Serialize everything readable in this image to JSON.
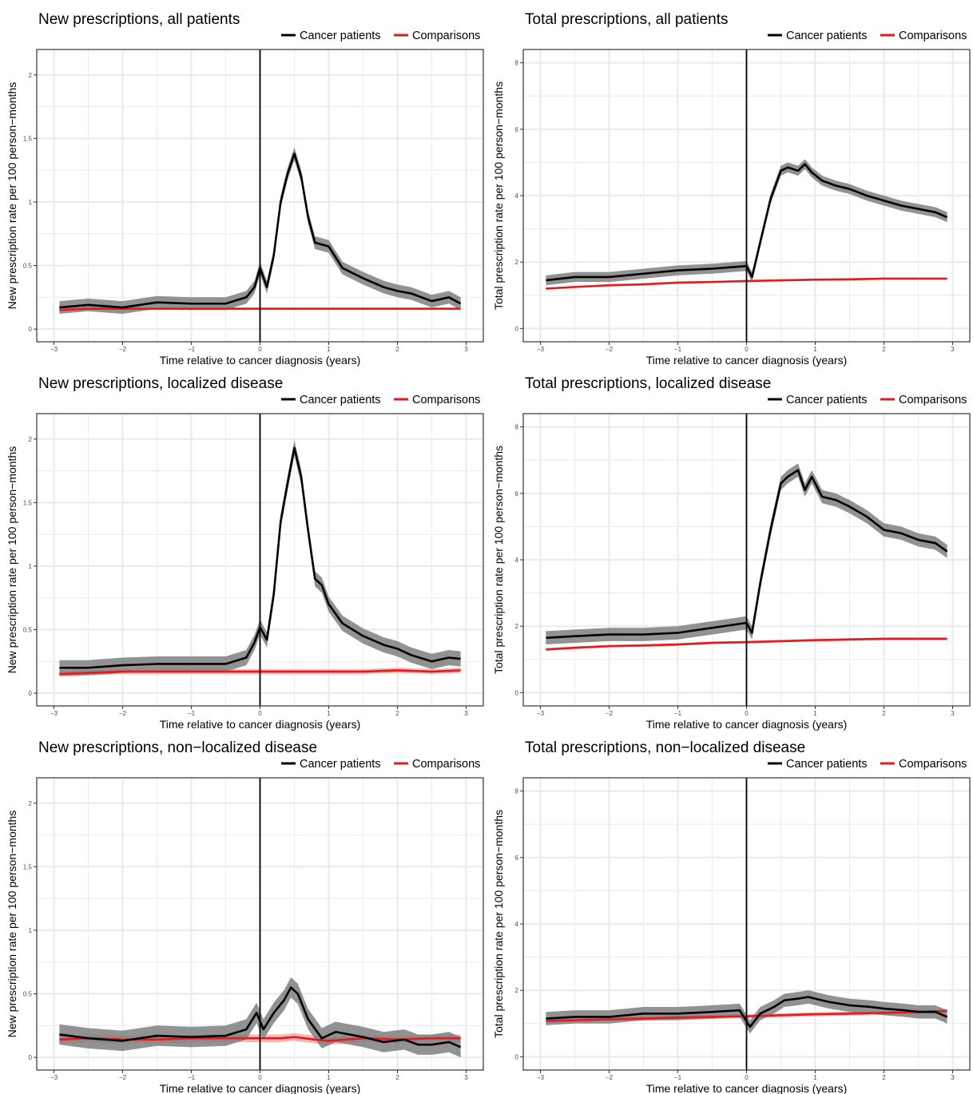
{
  "legend": {
    "cancer": "Cancer patients",
    "comparison": "Comparisons"
  },
  "colors": {
    "cancer": "#000000",
    "cancer_band": "#7f7f7f",
    "comparison": "#e41a1c",
    "comparison_band": "#f4a3a3",
    "grid": "#ebebeb",
    "frame": "#333333"
  },
  "x_axis": {
    "label": "Time relative to cancer diagnosis (years)",
    "ticks": [
      -3,
      -2,
      -1,
      0,
      1,
      2,
      3
    ],
    "tick_labels": [
      "−3",
      "−2",
      "−1",
      "0",
      "1",
      "2",
      "3"
    ],
    "range": [
      -3.25,
      3.25
    ]
  },
  "chart_data": [
    {
      "type": "line",
      "title": "New prescriptions, all patients",
      "xlabel": "Time relative to cancer diagnosis (years)",
      "ylabel": "New prescription rate per 100 person−months",
      "ylim": [
        -0.1,
        2.2
      ],
      "yticks": [
        0,
        0.5,
        1,
        1.5,
        2
      ],
      "ytick_labels": [
        "0",
        "0.5",
        "1",
        "1.5",
        "2"
      ],
      "grid": true,
      "legend_position": "top-right",
      "series": [
        {
          "name": "Cancer patients",
          "x": [
            -2.92,
            -2.5,
            -2.0,
            -1.5,
            -1.0,
            -0.5,
            -0.2,
            -0.08,
            0.0,
            0.1,
            0.2,
            0.3,
            0.4,
            0.5,
            0.6,
            0.7,
            0.8,
            1.0,
            1.2,
            1.5,
            1.8,
            2.0,
            2.2,
            2.5,
            2.75,
            2.92
          ],
          "y": [
            0.17,
            0.19,
            0.17,
            0.21,
            0.2,
            0.2,
            0.25,
            0.33,
            0.48,
            0.33,
            0.58,
            1.0,
            1.22,
            1.38,
            1.2,
            0.88,
            0.68,
            0.65,
            0.48,
            0.4,
            0.33,
            0.3,
            0.28,
            0.22,
            0.25,
            0.2
          ],
          "band": 0.05
        },
        {
          "name": "Comparisons",
          "x": [
            -2.92,
            -2.5,
            -2.0,
            -1.5,
            -1.0,
            -0.5,
            0.0,
            0.5,
            1.0,
            1.5,
            2.0,
            2.5,
            2.92
          ],
          "y": [
            0.15,
            0.16,
            0.16,
            0.16,
            0.16,
            0.16,
            0.16,
            0.16,
            0.16,
            0.16,
            0.16,
            0.16,
            0.16
          ],
          "band": 0.01
        }
      ]
    },
    {
      "type": "line",
      "title": "Total prescriptions, all patients",
      "xlabel": "Time relative to cancer diagnosis (years)",
      "ylabel": "Total prescription rate per 100 person−months",
      "ylim": [
        -0.4,
        8.4
      ],
      "yticks": [
        0,
        2,
        4,
        6,
        8
      ],
      "ytick_labels": [
        "0",
        "2",
        "4",
        "6",
        "8"
      ],
      "grid": true,
      "legend_position": "top-right",
      "series": [
        {
          "name": "Cancer patients",
          "x": [
            -2.92,
            -2.5,
            -2.0,
            -1.5,
            -1.0,
            -0.5,
            0.0,
            0.08,
            0.2,
            0.35,
            0.5,
            0.6,
            0.75,
            0.85,
            0.95,
            1.1,
            1.3,
            1.5,
            1.75,
            2.0,
            2.25,
            2.5,
            2.75,
            2.92
          ],
          "y": [
            1.45,
            1.55,
            1.55,
            1.65,
            1.75,
            1.8,
            1.88,
            1.55,
            2.6,
            3.9,
            4.75,
            4.85,
            4.75,
            4.95,
            4.7,
            4.45,
            4.3,
            4.2,
            4.0,
            3.85,
            3.7,
            3.6,
            3.5,
            3.35
          ],
          "band": 0.15
        },
        {
          "name": "Comparisons",
          "x": [
            -2.92,
            -2.5,
            -2.0,
            -1.5,
            -1.0,
            -0.5,
            0.0,
            0.5,
            1.0,
            1.5,
            2.0,
            2.5,
            2.92
          ],
          "y": [
            1.2,
            1.25,
            1.3,
            1.33,
            1.38,
            1.4,
            1.43,
            1.45,
            1.47,
            1.48,
            1.5,
            1.5,
            1.5
          ],
          "band": 0.03
        }
      ]
    },
    {
      "type": "line",
      "title": "New prescriptions, localized disease",
      "xlabel": "Time relative to cancer diagnosis (years)",
      "ylabel": "New prescription rate per 100 person−months",
      "ylim": [
        -0.1,
        2.2
      ],
      "yticks": [
        0,
        0.5,
        1,
        1.5,
        2
      ],
      "ytick_labels": [
        "0",
        "0.5",
        "1",
        "1.5",
        "2"
      ],
      "grid": true,
      "legend_position": "top-right",
      "series": [
        {
          "name": "Cancer patients",
          "x": [
            -2.92,
            -2.5,
            -2.0,
            -1.5,
            -1.0,
            -0.5,
            -0.2,
            -0.08,
            0.0,
            0.1,
            0.2,
            0.3,
            0.4,
            0.5,
            0.6,
            0.7,
            0.8,
            0.9,
            1.0,
            1.2,
            1.5,
            1.8,
            2.0,
            2.2,
            2.5,
            2.75,
            2.92
          ],
          "y": [
            0.2,
            0.2,
            0.22,
            0.23,
            0.23,
            0.23,
            0.28,
            0.4,
            0.52,
            0.42,
            0.78,
            1.35,
            1.65,
            1.93,
            1.7,
            1.28,
            0.9,
            0.85,
            0.7,
            0.55,
            0.45,
            0.38,
            0.35,
            0.3,
            0.25,
            0.28,
            0.27
          ],
          "band": 0.06
        },
        {
          "name": "Comparisons",
          "x": [
            -2.92,
            -2.5,
            -2.0,
            -1.5,
            -1.0,
            -0.5,
            0.0,
            0.5,
            1.0,
            1.5,
            2.0,
            2.5,
            2.92
          ],
          "y": [
            0.15,
            0.16,
            0.17,
            0.17,
            0.17,
            0.17,
            0.17,
            0.17,
            0.17,
            0.17,
            0.18,
            0.17,
            0.18
          ],
          "band": 0.02
        }
      ]
    },
    {
      "type": "line",
      "title": "Total prescriptions, localized disease",
      "xlabel": "Time relative to cancer diagnosis (years)",
      "ylabel": "Total prescription rate per 100 person−months",
      "ylim": [
        -0.4,
        8.4
      ],
      "yticks": [
        0,
        2,
        4,
        6,
        8
      ],
      "ytick_labels": [
        "0",
        "2",
        "4",
        "6",
        "8"
      ],
      "grid": true,
      "legend_position": "top-right",
      "series": [
        {
          "name": "Cancer patients",
          "x": [
            -2.92,
            -2.5,
            -2.0,
            -1.5,
            -1.0,
            -0.5,
            0.0,
            0.08,
            0.2,
            0.35,
            0.5,
            0.6,
            0.75,
            0.85,
            0.95,
            1.1,
            1.3,
            1.5,
            1.75,
            2.0,
            2.25,
            2.5,
            2.75,
            2.92
          ],
          "y": [
            1.65,
            1.7,
            1.75,
            1.75,
            1.8,
            1.95,
            2.1,
            1.8,
            3.3,
            4.9,
            6.3,
            6.5,
            6.7,
            6.1,
            6.5,
            5.9,
            5.8,
            5.6,
            5.3,
            4.9,
            4.8,
            4.6,
            4.5,
            4.25
          ],
          "band": 0.2
        },
        {
          "name": "Comparisons",
          "x": [
            -2.92,
            -2.5,
            -2.0,
            -1.5,
            -1.0,
            -0.5,
            0.0,
            0.5,
            1.0,
            1.5,
            2.0,
            2.5,
            2.92
          ],
          "y": [
            1.3,
            1.35,
            1.4,
            1.42,
            1.45,
            1.5,
            1.52,
            1.55,
            1.58,
            1.6,
            1.62,
            1.62,
            1.62
          ],
          "band": 0.04
        }
      ]
    },
    {
      "type": "line",
      "title": "New prescriptions, non−localized disease",
      "xlabel": "Time relative to cancer diagnosis (years)",
      "ylabel": "New prescription rate per 100 person−months",
      "ylim": [
        -0.1,
        2.2
      ],
      "yticks": [
        0,
        0.5,
        1,
        1.5,
        2
      ],
      "ytick_labels": [
        "0",
        "0.5",
        "1",
        "1.5",
        "2"
      ],
      "grid": true,
      "legend_position": "top-right",
      "series": [
        {
          "name": "Cancer patients",
          "x": [
            -2.92,
            -2.5,
            -2.0,
            -1.5,
            -1.0,
            -0.5,
            -0.2,
            -0.05,
            0.05,
            0.2,
            0.35,
            0.45,
            0.55,
            0.7,
            0.9,
            1.1,
            1.5,
            1.8,
            2.1,
            2.3,
            2.5,
            2.75,
            2.92
          ],
          "y": [
            0.18,
            0.15,
            0.13,
            0.17,
            0.16,
            0.17,
            0.22,
            0.35,
            0.22,
            0.35,
            0.45,
            0.55,
            0.5,
            0.3,
            0.15,
            0.2,
            0.16,
            0.12,
            0.14,
            0.1,
            0.1,
            0.12,
            0.08
          ],
          "band": 0.08
        },
        {
          "name": "Comparisons",
          "x": [
            -2.92,
            -2.5,
            -2.0,
            -1.5,
            -1.0,
            -0.5,
            0.0,
            0.3,
            0.5,
            0.8,
            1.0,
            1.5,
            2.0,
            2.5,
            2.92
          ],
          "y": [
            0.14,
            0.15,
            0.14,
            0.14,
            0.15,
            0.15,
            0.15,
            0.15,
            0.16,
            0.14,
            0.13,
            0.15,
            0.14,
            0.15,
            0.15
          ],
          "band": 0.03
        }
      ]
    },
    {
      "type": "line",
      "title": "Total prescriptions, non−localized disease",
      "xlabel": "Time relative to cancer diagnosis (years)",
      "ylabel": "Total prescription rate per 100 person−months",
      "ylim": [
        -0.4,
        8.4
      ],
      "yticks": [
        0,
        2,
        4,
        6,
        8
      ],
      "ytick_labels": [
        "0",
        "2",
        "4",
        "6",
        "8"
      ],
      "grid": true,
      "legend_position": "top-right",
      "series": [
        {
          "name": "Cancer patients",
          "x": [
            -2.92,
            -2.5,
            -2.0,
            -1.5,
            -1.0,
            -0.5,
            -0.1,
            0.05,
            0.2,
            0.4,
            0.55,
            0.75,
            0.9,
            1.0,
            1.2,
            1.5,
            1.8,
            2.0,
            2.3,
            2.5,
            2.75,
            2.92
          ],
          "y": [
            1.15,
            1.2,
            1.2,
            1.3,
            1.3,
            1.35,
            1.4,
            0.9,
            1.3,
            1.5,
            1.7,
            1.75,
            1.8,
            1.75,
            1.65,
            1.55,
            1.5,
            1.45,
            1.4,
            1.35,
            1.35,
            1.2
          ],
          "band": 0.2
        },
        {
          "name": "Comparisons",
          "x": [
            -2.92,
            -2.5,
            -2.0,
            -1.5,
            -1.0,
            -0.5,
            0.0,
            0.5,
            1.0,
            1.5,
            2.0,
            2.5,
            2.92
          ],
          "y": [
            1.08,
            1.1,
            1.13,
            1.15,
            1.18,
            1.2,
            1.22,
            1.25,
            1.28,
            1.3,
            1.32,
            1.35,
            1.38
          ],
          "band": 0.06
        }
      ]
    }
  ]
}
